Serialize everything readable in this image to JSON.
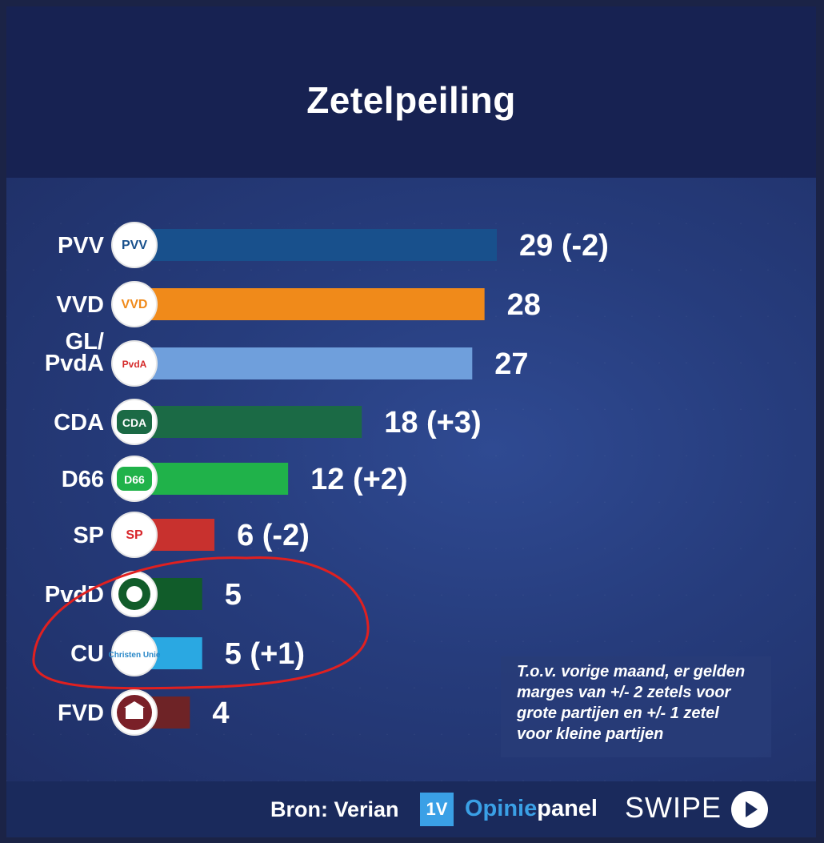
{
  "title": "Zetelpeiling",
  "chart_data": {
    "type": "bar",
    "orientation": "horizontal",
    "title": "Zetelpeiling",
    "categories": [
      "PVV",
      "VVD",
      "GL/\nPvdA",
      "CDA",
      "D66",
      "SP",
      "PvdD",
      "CU",
      "FVD"
    ],
    "values": [
      29,
      28,
      27,
      18,
      12,
      6,
      5,
      5,
      4
    ],
    "value_labels": [
      "29 (-2)",
      "28",
      "27",
      "18 (+3)",
      "12 (+2)",
      "6 (-2)",
      "5",
      "5 (+1)",
      "4"
    ],
    "change": [
      -2,
      null,
      null,
      3,
      2,
      -2,
      null,
      1,
      null
    ],
    "colors": [
      "#18508c",
      "#f08a1a",
      "#6f9fdc",
      "#1b6a45",
      "#20b24a",
      "#c8312e",
      "#115c2a",
      "#2aa8e2",
      "#6e2326"
    ],
    "logos": [
      {
        "name": "pvv-logo",
        "text": "PVV",
        "color": "#18508c"
      },
      {
        "name": "vvd-logo",
        "text": "VVD",
        "color": "#f08a1a"
      },
      {
        "name": "glpvda-logo",
        "text": "PvdA",
        "color": "#d52b2b"
      },
      {
        "name": "cda-logo",
        "text": "CDA",
        "color": "#1b6a45"
      },
      {
        "name": "d66-logo",
        "text": "D66",
        "color": "#20b24a"
      },
      {
        "name": "sp-logo",
        "text": "SP",
        "color": "#d8262b"
      },
      {
        "name": "pvdd-logo",
        "text": "",
        "color": "#115c2a"
      },
      {
        "name": "cu-logo",
        "text": "Christen Unie",
        "color": "#2a88c8"
      },
      {
        "name": "fvd-logo",
        "text": "",
        "color": "#7a2028"
      }
    ],
    "xlim": [
      0,
      29
    ],
    "grid": false,
    "legend": "none"
  },
  "note": {
    "lines": [
      "T.o.v. vorige maand, er gelden",
      "marges van +/- 2 zetels voor",
      "grote partijen en +/- 1 zetel",
      "voor kleine partijen"
    ]
  },
  "footer": {
    "source": "Bron: Verian",
    "brand_box": "1V",
    "brand_part1": "Opinie",
    "brand_part2": "panel",
    "swipe": "SWIPE"
  },
  "annotation_color": "#e02020"
}
